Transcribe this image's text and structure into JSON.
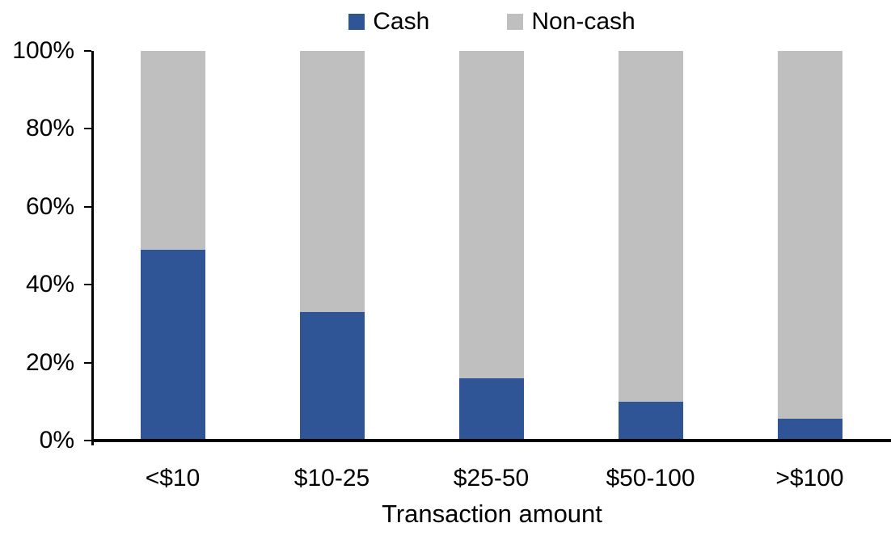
{
  "chart_data": {
    "type": "bar",
    "stacked": true,
    "orientation": "vertical",
    "categories": [
      "<$10",
      "$10-25",
      "$25-50",
      "$50-100",
      ">$100"
    ],
    "series": [
      {
        "name": "Cash",
        "color": "#2F5597",
        "values": [
          49,
          33,
          16,
          10,
          5.5
        ]
      },
      {
        "name": "Non-cash",
        "color": "#BFBFBF",
        "values": [
          51,
          67,
          84,
          90,
          94.5
        ]
      }
    ],
    "title": "",
    "xlabel": "Transaction amount",
    "ylabel": "",
    "ylim": [
      0,
      100
    ],
    "ytick_step": 20,
    "ytick_labels": [
      "0%",
      "20%",
      "40%",
      "60%",
      "80%",
      "100%"
    ],
    "grid": false,
    "legend_position": "top",
    "axis_color": "#000000",
    "text_color": "#000000",
    "background_color": "#FFFFFF"
  }
}
